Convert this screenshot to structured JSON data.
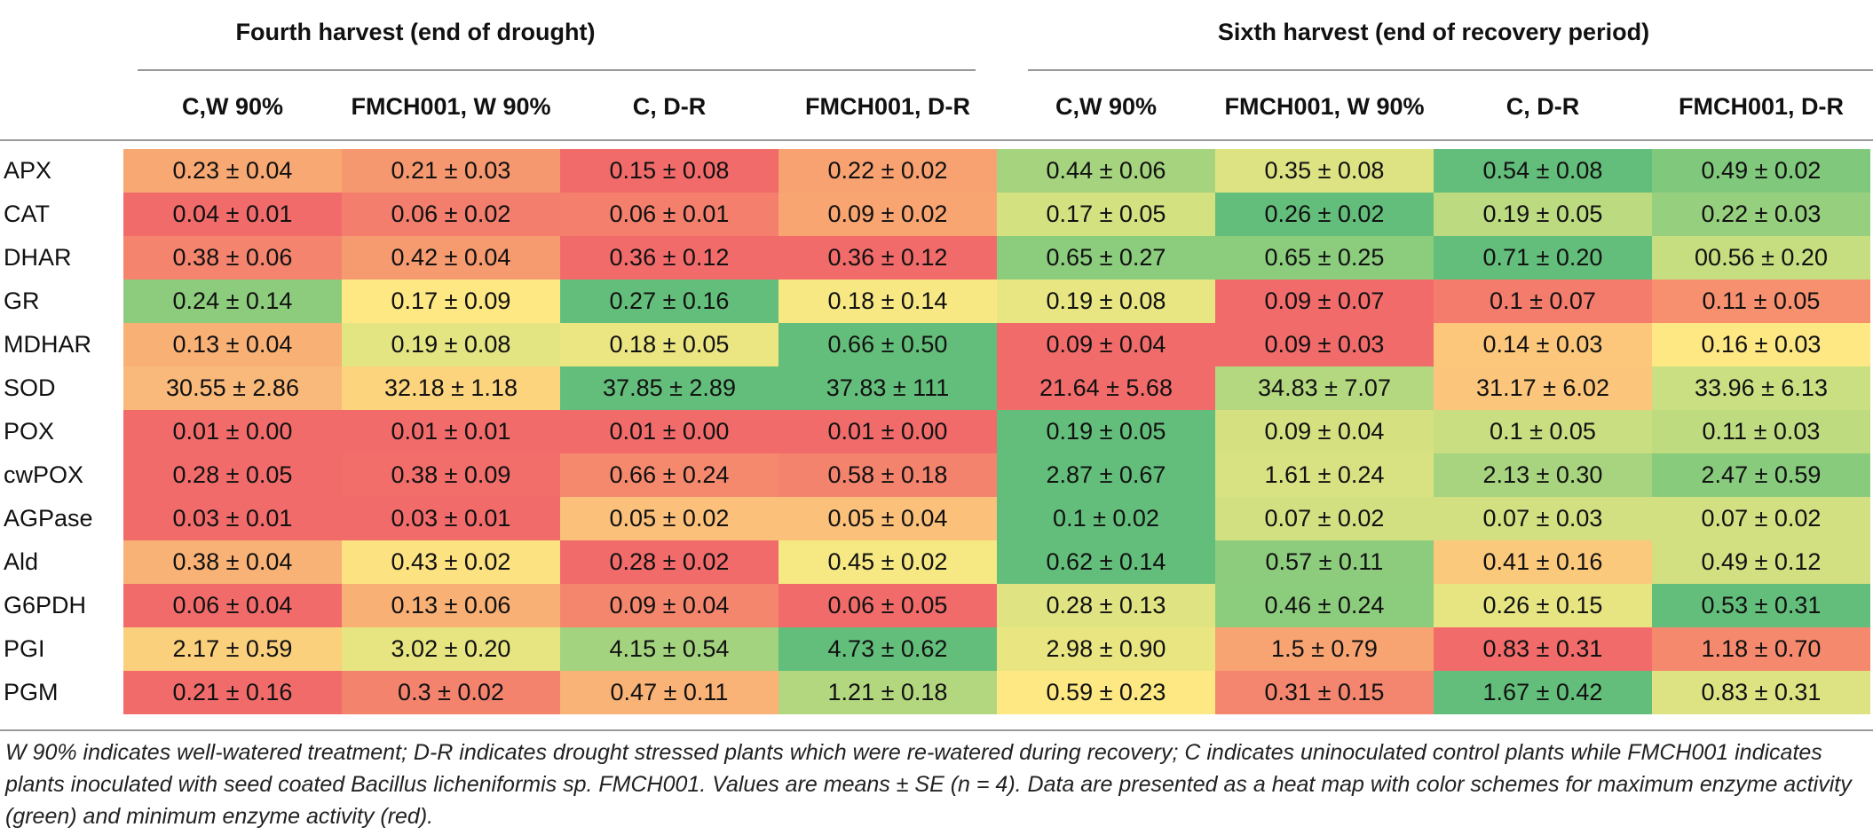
{
  "groups": [
    {
      "title": "Fourth harvest (end of drought)"
    },
    {
      "title": "Sixth harvest (end of recovery period)"
    }
  ],
  "columns": [
    "C,W 90%",
    "FMCH001, W 90%",
    "C, D-R",
    "FMCH001, D-R",
    "C,W 90%",
    "FMCH001, W 90%",
    "C, D-R",
    "FMCH001, D-R"
  ],
  "colors": {
    "red": "#f26b6b",
    "redorange": "#f48c6f",
    "orange": "#f8a873",
    "lightorange": "#fcc77b",
    "yellow": "#fde883",
    "yellowgreen": "#d4e181",
    "lightgreen": "#a5d37e",
    "green": "#7cc77c",
    "darkgreen": "#63be7b"
  },
  "rows": [
    {
      "label": "APX",
      "cells": [
        {
          "text": "0.23 ± 0.04",
          "color": "#f8a873"
        },
        {
          "text": "0.21 ± 0.03",
          "color": "#f6986f"
        },
        {
          "text": "0.15 ± 0.08",
          "color": "#f26b6b"
        },
        {
          "text": "0.22 ± 0.02",
          "color": "#f8a272"
        },
        {
          "text": "0.44 ± 0.06",
          "color": "#a5d37e"
        },
        {
          "text": "0.35 ± 0.08",
          "color": "#dde382"
        },
        {
          "text": "0.54 ± 0.08",
          "color": "#63be7b"
        },
        {
          "text": "0.49 ± 0.02",
          "color": "#80c87c"
        }
      ]
    },
    {
      "label": "CAT",
      "cells": [
        {
          "text": "0.04 ± 0.01",
          "color": "#f26b6b"
        },
        {
          "text": "0.06 ± 0.02",
          "color": "#f37e6d"
        },
        {
          "text": "0.06 ± 0.01",
          "color": "#f47f6d"
        },
        {
          "text": "0.09 ± 0.02",
          "color": "#f8a572"
        },
        {
          "text": "0.17 ± 0.05",
          "color": "#d4e181"
        },
        {
          "text": "0.26 ± 0.02",
          "color": "#63be7b"
        },
        {
          "text": "0.19 ± 0.05",
          "color": "#bcda80"
        },
        {
          "text": "0.22 ± 0.03",
          "color": "#96cf7e"
        }
      ]
    },
    {
      "label": "DHAR",
      "cells": [
        {
          "text": "0.38 ± 0.06",
          "color": "#f4846e"
        },
        {
          "text": "0.42 ± 0.04",
          "color": "#f69a70"
        },
        {
          "text": "0.36 ± 0.12",
          "color": "#f26b6b"
        },
        {
          "text": "0.36 ± 0.12",
          "color": "#f26b6b"
        },
        {
          "text": "0.65 ± 0.27",
          "color": "#8bcc7d"
        },
        {
          "text": "0.65 ± 0.25",
          "color": "#8bcc7d"
        },
        {
          "text": "0.71 ± 0.20",
          "color": "#63be7b"
        },
        {
          "text": "00.56 ± 0.20",
          "color": "#c6dd80"
        }
      ]
    },
    {
      "label": "GR",
      "cells": [
        {
          "text": "0.24 ± 0.14",
          "color": "#8dcc7d"
        },
        {
          "text": "0.17 ± 0.09",
          "color": "#fde883"
        },
        {
          "text": "0.27 ± 0.16",
          "color": "#63be7b"
        },
        {
          "text": "0.18 ± 0.14",
          "color": "#f7e883"
        },
        {
          "text": "0.19 ± 0.08",
          "color": "#e8e682"
        },
        {
          "text": "0.09 ± 0.07",
          "color": "#f26b6b"
        },
        {
          "text": "0.1 ± 0.07",
          "color": "#f47c6d"
        },
        {
          "text": "0.11 ± 0.05",
          "color": "#f6906f"
        }
      ]
    },
    {
      "label": "MDHAR",
      "cells": [
        {
          "text": "0.13 ± 0.04",
          "color": "#f9b075"
        },
        {
          "text": "0.19 ± 0.08",
          "color": "#e3e482"
        },
        {
          "text": "0.18 ± 0.05",
          "color": "#ebe682"
        },
        {
          "text": "0.66 ± 0.50",
          "color": "#63be7b"
        },
        {
          "text": "0.09 ± 0.04",
          "color": "#f26b6b"
        },
        {
          "text": "0.09 ± 0.03",
          "color": "#f26b6b"
        },
        {
          "text": "0.14 ± 0.03",
          "color": "#fcc77b"
        },
        {
          "text": "0.16 ± 0.03",
          "color": "#fde883"
        }
      ]
    },
    {
      "label": "SOD",
      "cells": [
        {
          "text": "30.55 ± 2.86",
          "color": "#f9b97a"
        },
        {
          "text": "32.18 ± 1.18",
          "color": "#fcd47e"
        },
        {
          "text": "37.85 ± 2.89",
          "color": "#63be7b"
        },
        {
          "text": "37.83 ± 111",
          "color": "#64be7b"
        },
        {
          "text": "21.64 ± 5.68",
          "color": "#f26b6b"
        },
        {
          "text": "34.83 ± 7.07",
          "color": "#b4d87f"
        },
        {
          "text": "31.17 ± 6.02",
          "color": "#fbc57b"
        },
        {
          "text": "33.96 ± 6.13",
          "color": "#cadf81"
        }
      ]
    },
    {
      "label": "POX",
      "cells": [
        {
          "text": "0.01 ± 0.00",
          "color": "#f26b6b"
        },
        {
          "text": "0.01 ± 0.01",
          "color": "#f26b6b"
        },
        {
          "text": "0.01 ± 0.00",
          "color": "#f26b6b"
        },
        {
          "text": "0.01 ± 0.00",
          "color": "#f26b6b"
        },
        {
          "text": "0.19 ± 0.05",
          "color": "#63be7b"
        },
        {
          "text": "0.09 ± 0.04",
          "color": "#d5e181"
        },
        {
          "text": "0.1 ± 0.05",
          "color": "#c9de81"
        },
        {
          "text": "0.11 ± 0.03",
          "color": "#bedb80"
        }
      ]
    },
    {
      "label": "cwPOX",
      "cells": [
        {
          "text": "0.28 ± 0.05",
          "color": "#f26b6b"
        },
        {
          "text": "0.38 ± 0.09",
          "color": "#f26e6b"
        },
        {
          "text": "0.66 ± 0.24",
          "color": "#f5896e"
        },
        {
          "text": "0.58 ± 0.18",
          "color": "#f4836e"
        },
        {
          "text": "2.87 ± 0.67",
          "color": "#63be7b"
        },
        {
          "text": "1.61 ± 0.24",
          "color": "#d9e282"
        },
        {
          "text": "2.13 ± 0.30",
          "color": "#a8d47f"
        },
        {
          "text": "2.47 ± 0.59",
          "color": "#88cb7d"
        }
      ]
    },
    {
      "label": "AGPase",
      "cells": [
        {
          "text": "0.03 ± 0.01",
          "color": "#f26b6b"
        },
        {
          "text": "0.03 ± 0.01",
          "color": "#f26b6b"
        },
        {
          "text": "0.05 ± 0.02",
          "color": "#fbc07a"
        },
        {
          "text": "0.05 ± 0.04",
          "color": "#fbc07a"
        },
        {
          "text": "0.1 ± 0.02",
          "color": "#63be7b"
        },
        {
          "text": "0.07 ± 0.02",
          "color": "#d3e081"
        },
        {
          "text": "0.07 ± 0.03",
          "color": "#d3e081"
        },
        {
          "text": "0.07 ± 0.02",
          "color": "#d3e081"
        }
      ]
    },
    {
      "label": "Ald",
      "cells": [
        {
          "text": "0.38 ± 0.04",
          "color": "#f9b276"
        },
        {
          "text": "0.43 ± 0.02",
          "color": "#fde282"
        },
        {
          "text": "0.28 ± 0.02",
          "color": "#f26b6b"
        },
        {
          "text": "0.45 ± 0.02",
          "color": "#f6e883"
        },
        {
          "text": "0.62 ± 0.14",
          "color": "#63be7b"
        },
        {
          "text": "0.57 ± 0.11",
          "color": "#8dcc7d"
        },
        {
          "text": "0.41 ± 0.16",
          "color": "#fbc97c"
        },
        {
          "text": "0.49 ± 0.12",
          "color": "#d2e081"
        }
      ]
    },
    {
      "label": "G6PDH",
      "cells": [
        {
          "text": "0.06 ± 0.04",
          "color": "#f26b6b"
        },
        {
          "text": "0.13 ± 0.06",
          "color": "#f9b075"
        },
        {
          "text": "0.09 ± 0.04",
          "color": "#f4866e"
        },
        {
          "text": "0.06 ± 0.05",
          "color": "#f26b6b"
        },
        {
          "text": "0.28 ± 0.13",
          "color": "#dfe382"
        },
        {
          "text": "0.46 ± 0.24",
          "color": "#8ccc7d"
        },
        {
          "text": "0.26 ± 0.15",
          "color": "#e6e582"
        },
        {
          "text": "0.53 ± 0.31",
          "color": "#63be7b"
        }
      ]
    },
    {
      "label": "PGI",
      "cells": [
        {
          "text": "2.17 ± 0.59",
          "color": "#fbd07d"
        },
        {
          "text": "3.02 ± 0.20",
          "color": "#e6e582"
        },
        {
          "text": "4.15 ± 0.54",
          "color": "#a3d37e"
        },
        {
          "text": "4.73 ± 0.62",
          "color": "#63be7b"
        },
        {
          "text": "2.98 ± 0.90",
          "color": "#e9e682"
        },
        {
          "text": "1.5 ± 0.79",
          "color": "#f8a472"
        },
        {
          "text": "0.83 ± 0.31",
          "color": "#f26b6b"
        },
        {
          "text": "1.18 ± 0.70",
          "color": "#f5896e"
        }
      ]
    },
    {
      "label": "PGM",
      "cells": [
        {
          "text": "0.21 ± 0.16",
          "color": "#f26b6b"
        },
        {
          "text": "0.3 ± 0.02",
          "color": "#f4836e"
        },
        {
          "text": "0.47 ± 0.11",
          "color": "#fab377"
        },
        {
          "text": "1.21 ± 0.18",
          "color": "#b3d77f"
        },
        {
          "text": "0.59 ± 0.23",
          "color": "#fde883"
        },
        {
          "text": "0.31 ± 0.15",
          "color": "#f4856e"
        },
        {
          "text": "1.67 ± 0.42",
          "color": "#63be7b"
        },
        {
          "text": "0.83 ± 0.31",
          "color": "#dde382"
        }
      ]
    }
  ],
  "footnote": "W 90% indicates well-watered treatment; D-R indicates drought stressed plants which were re-watered during recovery; C indicates uninoculated control plants while FMCH001 indicates plants inoculated with seed coated Bacillus licheniformis sp. FMCH001. Values are means ± SE (n = 4). Data are presented as a heat map with color schemes for maximum enzyme activity (green) and minimum enzyme activity (red)."
}
